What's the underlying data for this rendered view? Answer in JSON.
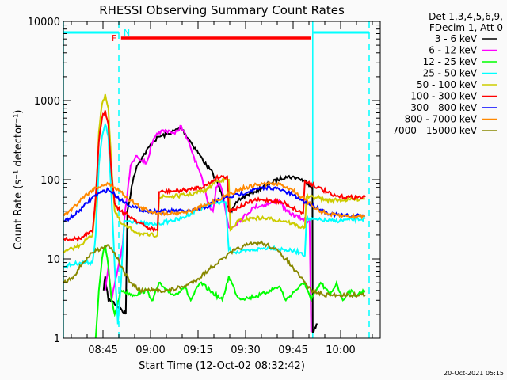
{
  "chart_data": {
    "type": "line",
    "title": "RHESSI Observing Summary Count Rates",
    "xlabel": "Start Time (12-Oct-02 08:32:42)",
    "ylabel": "Count Rate (s⁻¹ detector⁻¹)",
    "x_units": "minutes after 08:32:42",
    "xlim": [
      -0.2,
      99.8
    ],
    "ylim": [
      1,
      10000
    ],
    "yscale": "log",
    "yticks": [
      {
        "v": 1,
        "label": "1"
      },
      {
        "v": 10,
        "label": "10"
      },
      {
        "v": 100,
        "label": "100"
      },
      {
        "v": 1000,
        "label": "1000"
      },
      {
        "v": 10000,
        "label": "10000"
      }
    ],
    "xticks": [
      {
        "v": 12.3,
        "label": "08:45"
      },
      {
        "v": 27.3,
        "label": "09:00"
      },
      {
        "v": 42.3,
        "label": "09:15"
      },
      {
        "v": 57.3,
        "label": "09:30"
      },
      {
        "v": 72.3,
        "label": "09:45"
      },
      {
        "v": 87.3,
        "label": "10:00"
      }
    ],
    "legend_header": [
      "Det 1,3,4,5,6,9,",
      "FDecim 1, Att 0"
    ],
    "legend_position": "outside-right",
    "footer": "20-Oct-2021 05:15",
    "annotations": {
      "night": {
        "label": "N",
        "color": "#00ffff",
        "intervals": [
          [
            -0.2,
            17.3
          ],
          [
            78.7,
            96.3
          ]
        ]
      },
      "flare": {
        "label": "F",
        "color": "#ff0000",
        "intervals": [
          [
            18,
            77.8
          ]
        ]
      },
      "solid_lines": [
        -0.2,
        78.5
      ],
      "dashed_lines": [
        17.3,
        96.3
      ]
    },
    "series": [
      {
        "name": "3 - 6 keV",
        "color": "#000000",
        "points": [
          [
            12.5,
            4
          ],
          [
            13,
            6
          ],
          [
            14,
            3
          ],
          [
            15,
            3
          ],
          [
            19.5,
            2
          ],
          [
            20,
            40
          ],
          [
            22,
            110
          ],
          [
            23,
            150
          ],
          [
            25,
            200
          ],
          [
            28,
            300
          ],
          [
            30,
            350
          ],
          [
            33,
            380
          ],
          [
            35,
            420
          ],
          [
            37,
            450
          ],
          [
            40,
            300
          ],
          [
            43,
            200
          ],
          [
            45,
            150
          ],
          [
            47,
            120
          ],
          [
            49,
            80
          ],
          [
            50,
            60
          ],
          [
            52,
            45
          ],
          [
            53,
            40
          ],
          [
            55,
            55
          ],
          [
            58,
            65
          ],
          [
            60,
            70
          ],
          [
            65,
            90
          ],
          [
            70,
            110
          ],
          [
            74,
            105
          ],
          [
            77,
            90
          ],
          [
            78.4,
            80
          ],
          [
            78.5,
            1.2
          ],
          [
            80,
            1.5
          ]
        ]
      },
      {
        "name": "6 - 12 keV",
        "color": "#ff00ff",
        "points": [
          [
            13,
            4
          ],
          [
            14,
            8
          ],
          [
            15,
            3
          ],
          [
            18.5,
            15
          ],
          [
            19,
            30
          ],
          [
            21,
            150
          ],
          [
            23,
            200
          ],
          [
            26,
            160
          ],
          [
            28,
            300
          ],
          [
            30,
            400
          ],
          [
            33,
            420
          ],
          [
            35,
            380
          ],
          [
            37,
            480
          ],
          [
            40,
            250
          ],
          [
            42,
            150
          ],
          [
            43,
            120
          ],
          [
            45,
            60
          ],
          [
            46,
            45
          ],
          [
            47,
            40
          ],
          [
            48,
            80
          ],
          [
            49,
            95
          ],
          [
            50,
            70
          ],
          [
            51,
            40
          ],
          [
            52,
            25
          ],
          [
            53,
            25
          ],
          [
            56,
            32
          ],
          [
            60,
            45
          ],
          [
            65,
            50
          ],
          [
            68,
            55
          ],
          [
            70,
            40
          ],
          [
            75,
            32
          ],
          [
            77.5,
            30
          ],
          [
            78,
            1.2
          ]
        ]
      },
      {
        "name": "12 - 25 keV",
        "color": "#00ff00",
        "points": [
          [
            10,
            1
          ],
          [
            11,
            4
          ],
          [
            12,
            10
          ],
          [
            13,
            15
          ],
          [
            14,
            8
          ],
          [
            15,
            3
          ],
          [
            16,
            2
          ],
          [
            18,
            4
          ],
          [
            22,
            3.5
          ],
          [
            26,
            4
          ],
          [
            28,
            3
          ],
          [
            30,
            5
          ],
          [
            32,
            4
          ],
          [
            35,
            3.5
          ],
          [
            38,
            4.5
          ],
          [
            40,
            3
          ],
          [
            43,
            5
          ],
          [
            46,
            4
          ],
          [
            50,
            3
          ],
          [
            52,
            6
          ],
          [
            55,
            3.2
          ],
          [
            58,
            3.2
          ],
          [
            62,
            3.5
          ],
          [
            65,
            4
          ],
          [
            68,
            4.5
          ],
          [
            70,
            3
          ],
          [
            73,
            4
          ],
          [
            76,
            5
          ],
          [
            78,
            3
          ],
          [
            81,
            5
          ],
          [
            84,
            3.5
          ],
          [
            86,
            5
          ],
          [
            88,
            3
          ],
          [
            90,
            4
          ],
          [
            92,
            3.5
          ],
          [
            95,
            4
          ]
        ]
      },
      {
        "name": "25 - 50 keV",
        "color": "#00ffff",
        "points": [
          [
            0,
            8
          ],
          [
            5,
            9
          ],
          [
            9,
            9
          ],
          [
            10,
            20
          ],
          [
            11,
            150
          ],
          [
            12,
            350
          ],
          [
            13,
            500
          ],
          [
            14,
            350
          ],
          [
            15,
            60
          ],
          [
            16,
            8
          ],
          [
            17,
            1.5
          ],
          [
            18,
            5
          ],
          [
            19,
            30
          ],
          [
            22,
            30
          ],
          [
            25,
            28
          ],
          [
            28,
            27
          ],
          [
            30,
            28
          ],
          [
            33,
            30
          ],
          [
            37,
            32
          ],
          [
            42,
            42
          ],
          [
            47,
            50
          ],
          [
            51,
            52
          ],
          [
            52,
            13
          ],
          [
            55,
            12
          ],
          [
            60,
            13
          ],
          [
            65,
            14
          ],
          [
            70,
            13
          ],
          [
            75,
            12
          ],
          [
            76,
            11
          ],
          [
            76.5,
            32
          ],
          [
            80,
            31
          ],
          [
            85,
            30
          ],
          [
            90,
            31
          ],
          [
            95,
            32
          ]
        ]
      },
      {
        "name": "50 - 100 keV",
        "color": "#cccc00",
        "points": [
          [
            0,
            12
          ],
          [
            5,
            15
          ],
          [
            9,
            20
          ],
          [
            10,
            50
          ],
          [
            11,
            400
          ],
          [
            12,
            900
          ],
          [
            13,
            1200
          ],
          [
            14,
            800
          ],
          [
            15,
            150
          ],
          [
            16,
            40
          ],
          [
            18,
            28
          ],
          [
            20,
            25
          ],
          [
            25,
            20
          ],
          [
            29.5,
            20
          ],
          [
            30,
            60
          ],
          [
            35,
            62
          ],
          [
            40,
            65
          ],
          [
            45,
            75
          ],
          [
            48,
            95
          ],
          [
            50,
            100
          ],
          [
            52,
            100
          ],
          [
            52.5,
            23
          ],
          [
            55,
            30
          ],
          [
            60,
            33
          ],
          [
            65,
            32
          ],
          [
            70,
            30
          ],
          [
            75,
            25
          ],
          [
            76,
            25
          ],
          [
            76.5,
            60
          ],
          [
            80,
            60
          ],
          [
            82,
            55
          ],
          [
            86,
            55
          ],
          [
            90,
            56
          ],
          [
            95,
            58
          ]
        ]
      },
      {
        "name": "100 - 300 keV",
        "color": "#ff0000",
        "points": [
          [
            0,
            18
          ],
          [
            5,
            18
          ],
          [
            9,
            22
          ],
          [
            10,
            60
          ],
          [
            11,
            300
          ],
          [
            12,
            600
          ],
          [
            13,
            750
          ],
          [
            14,
            500
          ],
          [
            15,
            120
          ],
          [
            16,
            50
          ],
          [
            18,
            40
          ],
          [
            22,
            32
          ],
          [
            26,
            25
          ],
          [
            29.5,
            23
          ],
          [
            30,
            70
          ],
          [
            35,
            72
          ],
          [
            40,
            75
          ],
          [
            45,
            85
          ],
          [
            48,
            105
          ],
          [
            50,
            110
          ],
          [
            51.5,
            110
          ],
          [
            52,
            40
          ],
          [
            55,
            45
          ],
          [
            60,
            55
          ],
          [
            65,
            55
          ],
          [
            70,
            50
          ],
          [
            74,
            40
          ],
          [
            75.5,
            38
          ],
          [
            76,
            95
          ],
          [
            78,
            90
          ],
          [
            80,
            80
          ],
          [
            83,
            70
          ],
          [
            85,
            62
          ],
          [
            90,
            60
          ],
          [
            95,
            60
          ]
        ]
      },
      {
        "name": "300 - 800 keV",
        "color": "#0000ff",
        "points": [
          [
            0,
            30
          ],
          [
            3,
            35
          ],
          [
            6,
            45
          ],
          [
            9,
            60
          ],
          [
            12,
            70
          ],
          [
            14,
            75
          ],
          [
            16,
            65
          ],
          [
            18,
            55
          ],
          [
            22,
            45
          ],
          [
            26,
            40
          ],
          [
            30,
            40
          ],
          [
            35,
            40
          ],
          [
            40,
            40
          ],
          [
            45,
            45
          ],
          [
            48,
            55
          ],
          [
            52,
            60
          ],
          [
            55,
            65
          ],
          [
            60,
            75
          ],
          [
            65,
            80
          ],
          [
            68,
            75
          ],
          [
            72,
            65
          ],
          [
            75,
            55
          ],
          [
            78,
            48
          ],
          [
            81,
            42
          ],
          [
            84,
            37
          ],
          [
            88,
            35
          ],
          [
            92,
            35
          ],
          [
            95,
            35
          ]
        ]
      },
      {
        "name": "800 - 7000 keV",
        "color": "#ff8800",
        "points": [
          [
            0,
            35
          ],
          [
            3,
            45
          ],
          [
            6,
            60
          ],
          [
            9,
            75
          ],
          [
            12,
            85
          ],
          [
            14,
            88
          ],
          [
            16,
            80
          ],
          [
            18,
            70
          ],
          [
            21,
            55
          ],
          [
            24,
            45
          ],
          [
            27,
            40
          ],
          [
            30,
            38
          ],
          [
            35,
            38
          ],
          [
            40,
            40
          ],
          [
            45,
            48
          ],
          [
            50,
            60
          ],
          [
            55,
            75
          ],
          [
            60,
            85
          ],
          [
            65,
            90
          ],
          [
            69,
            85
          ],
          [
            72,
            75
          ],
          [
            75,
            60
          ],
          [
            78,
            48
          ],
          [
            81,
            40
          ],
          [
            84,
            36
          ],
          [
            88,
            35
          ],
          [
            92,
            34
          ],
          [
            95,
            35
          ]
        ]
      },
      {
        "name": "7000 - 15000 keV",
        "color": "#888800",
        "points": [
          [
            0,
            5
          ],
          [
            3,
            6
          ],
          [
            6,
            9
          ],
          [
            9,
            12
          ],
          [
            12,
            14
          ],
          [
            14,
            15
          ],
          [
            16,
            12
          ],
          [
            18,
            8
          ],
          [
            21,
            5
          ],
          [
            24,
            4
          ],
          [
            28,
            4
          ],
          [
            33,
            4
          ],
          [
            38,
            4.5
          ],
          [
            42,
            5.5
          ],
          [
            46,
            7.5
          ],
          [
            50,
            10
          ],
          [
            54,
            13
          ],
          [
            58,
            15
          ],
          [
            62,
            16
          ],
          [
            66,
            14
          ],
          [
            70,
            10
          ],
          [
            73,
            7
          ],
          [
            76,
            5
          ],
          [
            78,
            4
          ],
          [
            82,
            3.5
          ],
          [
            86,
            3.5
          ],
          [
            90,
            3.5
          ],
          [
            95,
            3.5
          ]
        ]
      }
    ]
  }
}
